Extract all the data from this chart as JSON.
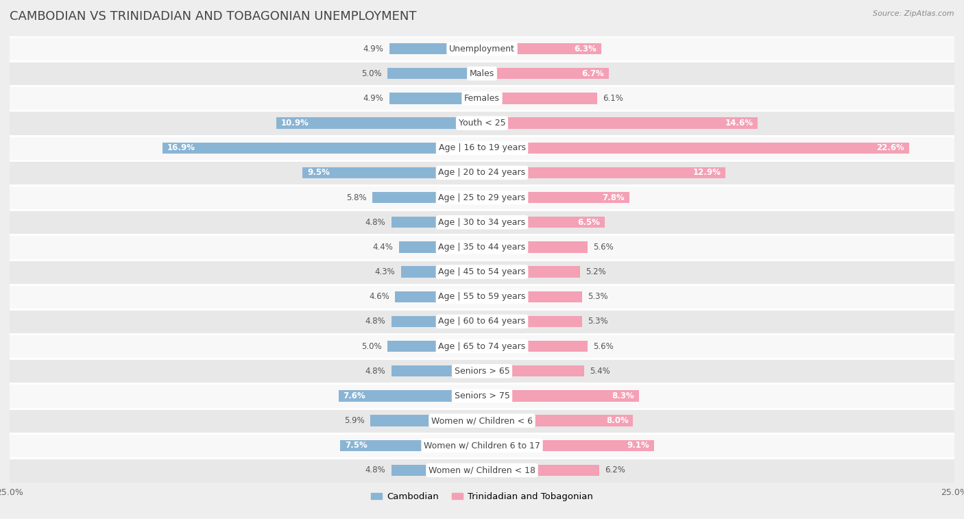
{
  "title": "CAMBODIAN VS TRINIDADIAN AND TOBAGONIAN UNEMPLOYMENT",
  "source": "Source: ZipAtlas.com",
  "categories": [
    "Unemployment",
    "Males",
    "Females",
    "Youth < 25",
    "Age | 16 to 19 years",
    "Age | 20 to 24 years",
    "Age | 25 to 29 years",
    "Age | 30 to 34 years",
    "Age | 35 to 44 years",
    "Age | 45 to 54 years",
    "Age | 55 to 59 years",
    "Age | 60 to 64 years",
    "Age | 65 to 74 years",
    "Seniors > 65",
    "Seniors > 75",
    "Women w/ Children < 6",
    "Women w/ Children 6 to 17",
    "Women w/ Children < 18"
  ],
  "cambodian": [
    4.9,
    5.0,
    4.9,
    10.9,
    16.9,
    9.5,
    5.8,
    4.8,
    4.4,
    4.3,
    4.6,
    4.8,
    5.0,
    4.8,
    7.6,
    5.9,
    7.5,
    4.8
  ],
  "trinidadian": [
    6.3,
    6.7,
    6.1,
    14.6,
    22.6,
    12.9,
    7.8,
    6.5,
    5.6,
    5.2,
    5.3,
    5.3,
    5.6,
    5.4,
    8.3,
    8.0,
    9.1,
    6.2
  ],
  "cambodian_color": "#8ab4d4",
  "trinidadian_color": "#f4a0b5",
  "cambodian_highlight": "#5b9dc2",
  "trinidadian_highlight": "#e8607a",
  "cambodian_label": "Cambodian",
  "trinidadian_label": "Trinidadian and Tobagonian",
  "axis_max": 25.0,
  "bg_color": "#eeeeee",
  "row_bg_light": "#f8f8f8",
  "row_bg_dark": "#e8e8e8",
  "title_fontsize": 13,
  "label_fontsize": 9,
  "value_fontsize": 8.5
}
